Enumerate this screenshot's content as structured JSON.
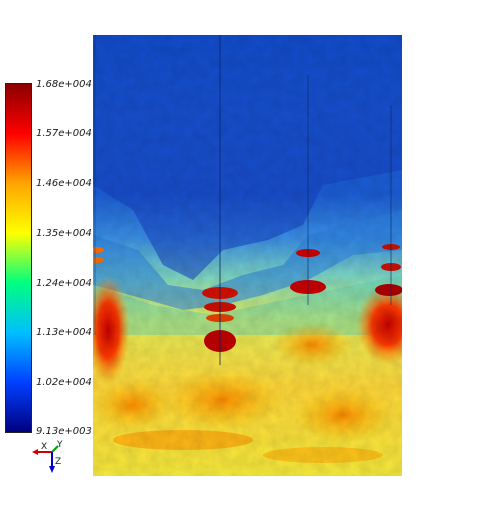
{
  "colorbar": {
    "tick_labels": [
      "1.68e+004",
      "1.57e+004",
      "1.46e+004",
      "1.35e+004",
      "1.24e+004",
      "1.13e+004",
      "1.02e+004",
      "9.13e+003"
    ],
    "range": [
      9130,
      16800
    ],
    "colors": [
      "#8b0000",
      "#ff0000",
      "#ffa500",
      "#ffff00",
      "#00ff80",
      "#00bfff",
      "#0040ff",
      "#000080"
    ]
  },
  "axes_triad": {
    "x_label": "X",
    "y_label": "Y",
    "z_label": "Z",
    "x_color": "#d00000",
    "y_color": "#00a000",
    "z_color": "#0000d0"
  }
}
